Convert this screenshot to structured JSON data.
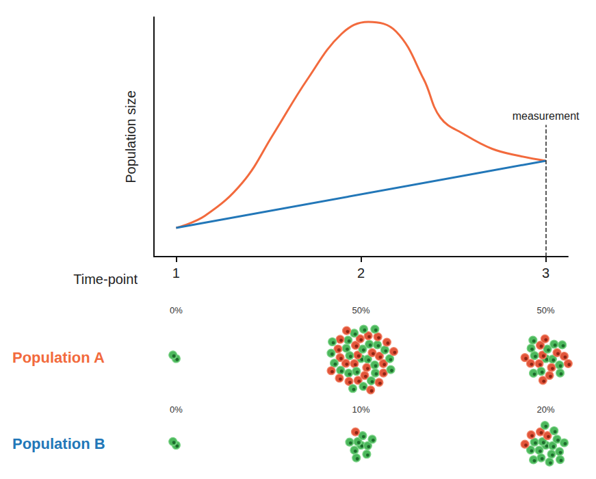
{
  "chart_data": {
    "type": "line",
    "x_label": "Time-point",
    "y_label": "Population size",
    "xlim": [
      0.88,
      3.12
    ],
    "xticks": [
      1,
      2,
      3
    ],
    "ylim": [
      0,
      100
    ],
    "tick_labels": "x",
    "grid": false,
    "annotations": [
      {
        "text": "measurement",
        "x": 3,
        "y": 55
      }
    ],
    "series": [
      {
        "name": "Population A",
        "color": "#f26a3d",
        "marker": "none",
        "x": [
          1,
          1.155,
          1.36,
          1.525,
          1.71,
          1.895,
          2.04,
          2.19,
          2.34,
          2.43,
          2.56,
          2.71,
          2.86,
          3
        ],
        "values": [
          12,
          17,
          31,
          51,
          74,
          93,
          98,
          94,
          74,
          58,
          51,
          45,
          42,
          40
        ],
        "composition": [
          {
            "time_point": 1,
            "value": 0,
            "label": "0%",
            "cells": 2
          },
          {
            "time_point": 2,
            "value": 50,
            "label": "50%",
            "cells": 50
          },
          {
            "time_point": 3,
            "value": 50,
            "label": "50%",
            "cells": 24
          }
        ]
      },
      {
        "name": "Population B",
        "color": "#2277b8",
        "marker": "none",
        "x": [
          1,
          3
        ],
        "values": [
          12,
          40
        ],
        "composition": [
          {
            "time_point": 1,
            "value": 0,
            "label": "0%",
            "cells": 2
          },
          {
            "time_point": 2,
            "value": 10,
            "label": "10%",
            "cells": 10
          },
          {
            "time_point": 3,
            "value": 20,
            "label": "20%",
            "cells": 20
          }
        ]
      }
    ]
  }
}
